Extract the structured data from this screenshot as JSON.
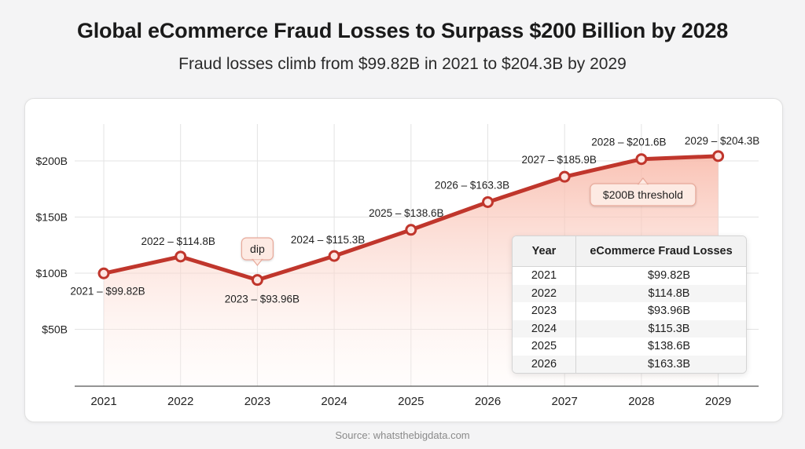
{
  "header": {
    "title": "Global eCommerce Fraud Losses to Surpass $200 Billion by 2028",
    "subtitle": "Fraud losses climb from $99.82B in 2021 to $204.3B by 2029"
  },
  "source": "Source: whatsthebigdata.com",
  "colors": {
    "line": "#c0362c",
    "area_top": "#f8b8a8",
    "area_bottom": "#fff4f0",
    "grid": "#e3e3e3"
  },
  "chart_data": {
    "type": "line",
    "title": "Global eCommerce Fraud Losses to Surpass $200 Billion by 2028",
    "subtitle": "Fraud losses climb from $99.82B in 2021 to $204.3B by 2029",
    "xlabel": "",
    "ylabel": "",
    "categories": [
      "2021",
      "2022",
      "2023",
      "2024",
      "2025",
      "2026",
      "2027",
      "2028",
      "2029"
    ],
    "series": [
      {
        "values": [
          99.82,
          114.8,
          93.96,
          115.3,
          138.6,
          163.3,
          185.9,
          201.6,
          204.3
        ]
      }
    ],
    "point_labels": [
      "2021 – $99.82B",
      "2022 – $114.8B",
      "2023 – $93.96B",
      "2024 – $115.3B",
      "2025 – $138.6B",
      "2026 – $163.3B",
      "2027 – $185.9B",
      "2028 – $201.6B",
      "2029 – $204.3B"
    ],
    "yticks": [
      {
        "value": 50,
        "label": "$50B"
      },
      {
        "value": 100,
        "label": "$100B"
      },
      {
        "value": 150,
        "label": "$150B"
      },
      {
        "value": 200,
        "label": "$200B"
      }
    ],
    "ylim": [
      0,
      230
    ],
    "grid": true,
    "legend": "none",
    "annotations": [
      {
        "category": "2023",
        "text": "dip"
      },
      {
        "category": "2028",
        "text": "$200B threshold"
      }
    ]
  },
  "table": {
    "headers": [
      "Year",
      "eCommerce Fraud Losses"
    ],
    "rows": [
      [
        "2021",
        "$99.82B"
      ],
      [
        "2022",
        "$114.8B"
      ],
      [
        "2023",
        "$93.96B"
      ],
      [
        "2024",
        "$115.3B"
      ],
      [
        "2025",
        "$138.6B"
      ],
      [
        "2026",
        "$163.3B"
      ]
    ]
  }
}
